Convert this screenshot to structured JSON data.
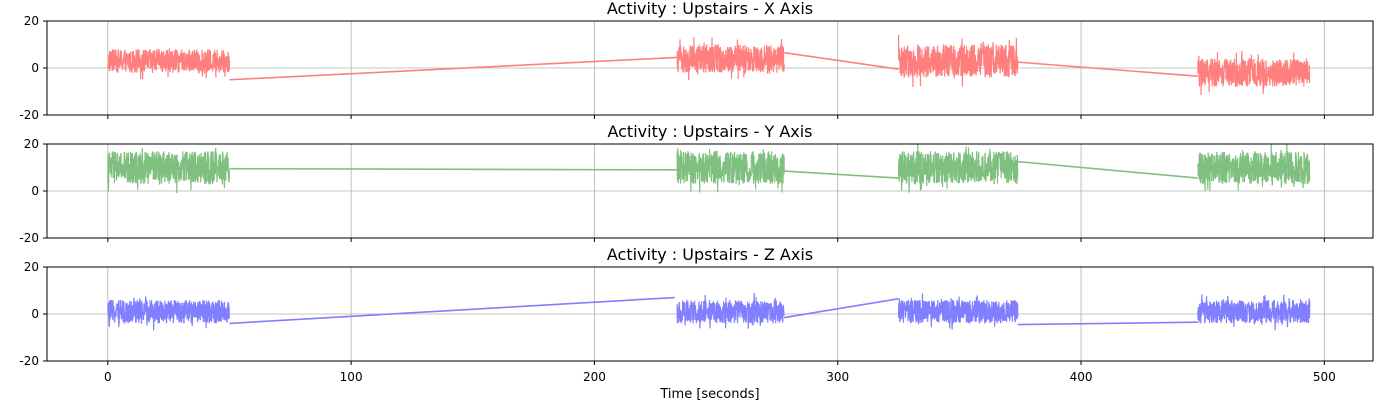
{
  "chart_data": [
    {
      "type": "line",
      "title": "Activity : Upstairs - X Axis",
      "color": "#ff7f7f",
      "xlim": [
        -25,
        520
      ],
      "ylim": [
        -20,
        20
      ],
      "yticks": [
        -20,
        0,
        20
      ],
      "xticks": [
        0,
        100,
        200,
        300,
        400,
        500
      ],
      "show_xticklabels": false,
      "grid": true,
      "segments": [
        {
          "x_start": 0,
          "x_end": 50,
          "center": 3,
          "amplitude": 5
        },
        {
          "x_start": 234,
          "x_end": 278,
          "center": 4,
          "amplitude": 6
        },
        {
          "x_start": 325,
          "x_end": 374,
          "center": 3,
          "amplitude": 7
        },
        {
          "x_start": 448,
          "x_end": 494,
          "center": -2,
          "amplitude": 6
        }
      ],
      "connectors": [
        {
          "x": [
            50,
            234
          ],
          "y": [
            -5,
            4.5
          ]
        },
        {
          "x": [
            278,
            325
          ],
          "y": [
            6.5,
            -0.5
          ]
        },
        {
          "x": [
            374,
            448
          ],
          "y": [
            2.5,
            -3.5
          ]
        }
      ]
    },
    {
      "type": "line",
      "title": "Activity : Upstairs - Y Axis",
      "color": "#7fbf7f",
      "xlim": [
        -25,
        520
      ],
      "ylim": [
        -20,
        20
      ],
      "yticks": [
        -20,
        0,
        20
      ],
      "xticks": [
        0,
        100,
        200,
        300,
        400,
        500
      ],
      "show_xticklabels": false,
      "grid": true,
      "segments": [
        {
          "x_start": 0,
          "x_end": 50,
          "center": 10,
          "amplitude": 7
        },
        {
          "x_start": 234,
          "x_end": 278,
          "center": 10,
          "amplitude": 7
        },
        {
          "x_start": 325,
          "x_end": 374,
          "center": 10,
          "amplitude": 7
        },
        {
          "x_start": 448,
          "x_end": 494,
          "center": 10,
          "amplitude": 7
        }
      ],
      "connectors": [
        {
          "x": [
            50,
            234
          ],
          "y": [
            9.5,
            9
          ]
        },
        {
          "x": [
            278,
            325
          ],
          "y": [
            8.5,
            5.5
          ]
        },
        {
          "x": [
            374,
            448
          ],
          "y": [
            12.5,
            5.5
          ]
        }
      ]
    },
    {
      "type": "line",
      "title": "Activity : Upstairs - Z Axis",
      "color": "#7f7fff",
      "xlim": [
        -25,
        520
      ],
      "ylim": [
        -20,
        20
      ],
      "yticks": [
        -20,
        0,
        20
      ],
      "xticks": [
        0,
        100,
        200,
        300,
        400,
        500
      ],
      "xticklabels": [
        "0",
        "100",
        "200",
        "300",
        "400",
        "500"
      ],
      "show_xticklabels": true,
      "xlabel": "Time [seconds]",
      "grid": true,
      "segments": [
        {
          "x_start": 0,
          "x_end": 50,
          "center": 1,
          "amplitude": 5
        },
        {
          "x_start": 234,
          "x_end": 278,
          "center": 1,
          "amplitude": 5
        },
        {
          "x_start": 325,
          "x_end": 374,
          "center": 1,
          "amplitude": 5
        },
        {
          "x_start": 448,
          "x_end": 494,
          "center": 1,
          "amplitude": 5
        }
      ],
      "connectors": [
        {
          "x": [
            50,
            233
          ],
          "y": [
            -4,
            7
          ]
        },
        {
          "x": [
            278,
            325
          ],
          "y": [
            -1.5,
            6.5
          ]
        },
        {
          "x": [
            374,
            448
          ],
          "y": [
            -4.5,
            -3.5
          ]
        }
      ]
    }
  ]
}
